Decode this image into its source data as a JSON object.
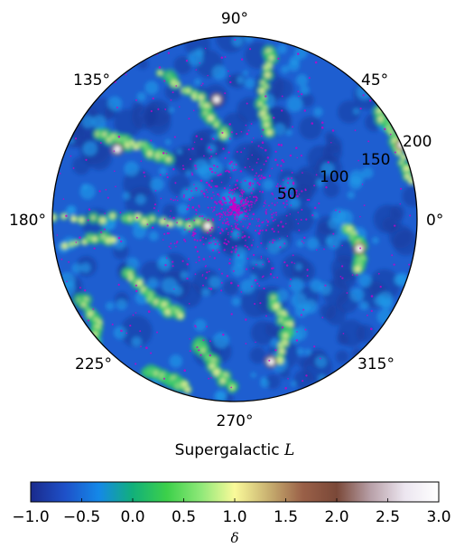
{
  "chart_data": {
    "type": "heatmap",
    "projection": "polar",
    "angular_ticks": [
      "0°",
      "45°",
      "90°",
      "135°",
      "180°",
      "225°",
      "270°",
      "315°"
    ],
    "radial_ticks": [
      "50",
      "100",
      "150",
      "200"
    ],
    "xlabel_text": "Supergalactic ",
    "xlabel_var": "L",
    "colorbar": {
      "label": "δ",
      "range": [
        -1.0,
        3.0
      ],
      "ticks": [
        "−1.0",
        "−0.5",
        "0.0",
        "0.5",
        "1.0",
        "1.5",
        "2.0",
        "2.5",
        "3.0"
      ],
      "colors": [
        "#1a2a8c",
        "#1e50c8",
        "#1488e8",
        "#12b07a",
        "#3cd04a",
        "#8ee878",
        "#fafa9a",
        "#c8b070",
        "#9a6048",
        "#7a4838",
        "#b8a0a8",
        "#ece6f0",
        "#ffffff"
      ]
    },
    "overlay_points_color": "#c800c8",
    "grid": false
  }
}
